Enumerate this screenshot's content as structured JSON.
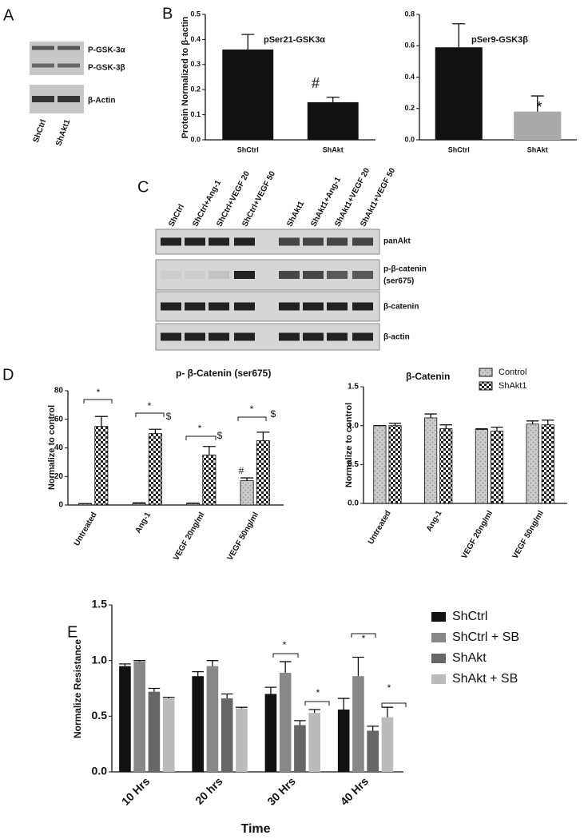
{
  "panels": [
    "A",
    "B",
    "C",
    "D",
    "E"
  ],
  "blot_a": {
    "labels": [
      "P-GSK-3α",
      "P-GSK-3β",
      "β-Actin"
    ],
    "lanes": [
      "ShCtrl",
      "ShAkt1"
    ]
  },
  "blot_c": {
    "lanes": [
      "ShCtrl",
      "ShCtrl+Ang-1",
      "ShCtrl+VEGF 20",
      "ShCtrl+VEGF 50",
      "ShAkt1",
      "ShAkt1+Ang-1",
      "ShAkt1+VEGF 20",
      "ShAkt1+VEGF 50"
    ],
    "labels": [
      "panAkt",
      "p-β-catenin",
      "(ser675)",
      "β-catenin",
      "β-actin"
    ]
  },
  "chart_data": [
    {
      "type": "bar",
      "title": "pSer21-GSK3α",
      "y_label": "Protein Normalized to β-actin",
      "categories": [
        "ShCtrl",
        "ShAkt"
      ],
      "values": [
        0.36,
        0.15
      ],
      "errors": [
        0.06,
        0.02
      ],
      "colors": [
        "#111111",
        "#111111"
      ],
      "ylim": [
        0,
        0.5
      ],
      "yticks": [
        {
          "value": 0,
          "label": "0.0"
        },
        0.1,
        0.2,
        0.3,
        0.4,
        0.5
      ],
      "annotations": [
        "#"
      ]
    },
    {
      "type": "bar",
      "title": "pSer9-GSK3β",
      "categories": [
        "ShCtrl",
        "ShAkt"
      ],
      "values": [
        0.59,
        0.18
      ],
      "errors": [
        0.15,
        0.1
      ],
      "colors": [
        "#111111",
        "#aaaaaa"
      ],
      "ylim": [
        0,
        0.8
      ],
      "yticks": [
        {
          "value": 0,
          "label": "0.0"
        },
        0.2,
        0.4,
        0.6,
        0.8
      ],
      "annotations": [
        "*"
      ]
    },
    {
      "type": "bar",
      "title": "p- β-Catenin (ser675)",
      "y_label": "Normalize to control",
      "categories": [
        "Untreated",
        "Ang-1",
        "VEGF 20ng/ml",
        "VEGF 50ng/ml"
      ],
      "series": [
        {
          "name": "Control",
          "color": "#999999",
          "values": [
            1,
            1,
            1,
            17
          ],
          "errors": [
            0,
            0.5,
            0.3,
            2
          ]
        },
        {
          "name": "ShAkt1",
          "color": "#222222",
          "values": [
            55,
            50,
            35,
            45
          ],
          "errors": [
            7,
            3,
            6,
            6
          ]
        }
      ],
      "ylim": [
        0,
        80
      ],
      "yticks": [
        0,
        20,
        40,
        60,
        80
      ],
      "annotations": [
        "*",
        "*",
        "*",
        "*",
        "$",
        "$",
        "$",
        "#"
      ]
    },
    {
      "type": "bar",
      "title": "β-Catenin",
      "y_label": "Normalize to control",
      "categories": [
        "Untreated",
        "Ang-1",
        "VEGF 20ng/ml",
        "VEGF 50ng/ml"
      ],
      "series": [
        {
          "name": "Control",
          "color": "#999999",
          "values": [
            1.0,
            1.1,
            0.95,
            1.02
          ],
          "errors": [
            0,
            0.05,
            0.01,
            0.04
          ]
        },
        {
          "name": "ShAkt1",
          "color": "#222222",
          "values": [
            1.0,
            0.96,
            0.93,
            1.01
          ],
          "errors": [
            0.03,
            0.05,
            0.05,
            0.06
          ]
        }
      ],
      "ylim": [
        0,
        1.5
      ],
      "yticks": [
        {
          "value": 0,
          "label": "0.0"
        },
        0.5,
        {
          "value": 1,
          "label": "1.0"
        },
        1.5
      ]
    },
    {
      "type": "bar",
      "y_label": "Normalize Resistance",
      "x_label": "Time",
      "categories": [
        "10 Hrs",
        "20 hrs",
        "30 Hrs",
        "40 Hrs"
      ],
      "series": [
        {
          "name": "ShCtrl",
          "color": "#111111",
          "values": [
            0.95,
            0.86,
            0.7,
            0.56
          ],
          "errors": [
            0.02,
            0.04,
            0.06,
            0.1
          ]
        },
        {
          "name": "ShCtrl + SB",
          "color": "#888888",
          "values": [
            0.99,
            0.95,
            0.89,
            0.86
          ],
          "errors": [
            0.01,
            0.05,
            0.1,
            0.17
          ]
        },
        {
          "name": "ShAkt",
          "color": "#666666",
          "values": [
            0.72,
            0.66,
            0.42,
            0.37
          ],
          "errors": [
            0.03,
            0.04,
            0.04,
            0.04
          ]
        },
        {
          "name": "ShAkt + SB",
          "color": "#bbbbbb",
          "values": [
            0.66,
            0.57,
            0.53,
            0.49
          ],
          "errors": [
            0.01,
            0.01,
            0.03,
            0.09
          ]
        }
      ],
      "ylim": [
        0,
        1.5
      ],
      "yticks": [
        {
          "value": 0,
          "label": "0.0"
        },
        0.5,
        {
          "value": 1,
          "label": "1.0"
        },
        1.5
      ],
      "annotations": [
        "*",
        "*",
        "*",
        "*"
      ]
    }
  ]
}
